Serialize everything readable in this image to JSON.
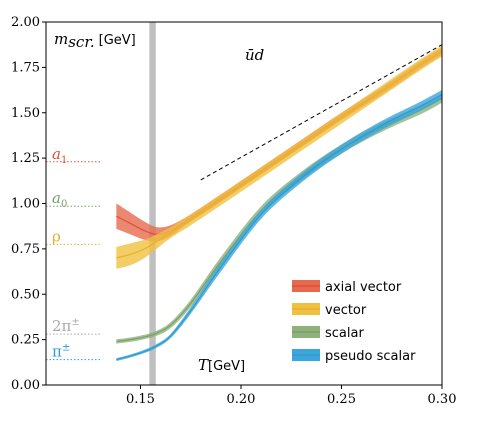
{
  "chart_data": {
    "type": "line",
    "title": "",
    "ylabel": "m_scr. [GeV]",
    "ylabel_unit": "[GeV]",
    "xlabel_unit": "[GeV]",
    "ylabel_symbol": "m",
    "ylabel_sub": "scr.",
    "xlabel_symbol": "T",
    "annotation": "ūd",
    "xlim": [
      0.103,
      0.3
    ],
    "ylim": [
      0.0,
      2.0
    ],
    "xticks": [
      0.15,
      0.2,
      0.25,
      0.3
    ],
    "xtick_labels": [
      "0.15",
      "0.20",
      "0.25",
      "0.30"
    ],
    "yticks": [
      0.0,
      0.25,
      0.5,
      0.75,
      1.0,
      1.25,
      1.5,
      1.75,
      2.0
    ],
    "ytick_labels": [
      "0.00",
      "0.25",
      "0.50",
      "0.75",
      "1.00",
      "1.25",
      "1.50",
      "1.75",
      "2.00"
    ],
    "grid": false,
    "legend_position": "bottom-right",
    "vertical_band": {
      "x": 0.156,
      "half_width": 0.0016,
      "color": "#bfbfbf"
    },
    "reference_line": {
      "x": [
        0.18,
        0.3
      ],
      "y": [
        1.13,
        1.875
      ],
      "style": "dashed",
      "color": "#000000"
    },
    "reference_levels": [
      {
        "label_base": "a",
        "label_sub": "1",
        "label_sup": "",
        "y": 1.23,
        "color": "#e0503a"
      },
      {
        "label_base": "a",
        "label_sub": "0",
        "label_sup": "",
        "y": 0.985,
        "color": "#7aa06a"
      },
      {
        "label_base": "ρ",
        "label_sub": "",
        "label_sup": "",
        "y": 0.775,
        "color": "#e8b02a"
      },
      {
        "label_base": "2π",
        "label_sub": "",
        "label_sup": "±",
        "y": 0.28,
        "color": "#aaaaaa"
      },
      {
        "label_base": "π",
        "label_sub": "",
        "label_sup": "±",
        "y": 0.14,
        "color": "#2e9ad0"
      }
    ],
    "series": [
      {
        "name": "axial vector",
        "color": "#e0503a",
        "band_color": "#e76a4f",
        "x": [
          0.138,
          0.145,
          0.152,
          0.158,
          0.165,
          0.175,
          0.19,
          0.21,
          0.23,
          0.25,
          0.27,
          0.29,
          0.3
        ],
        "y": [
          0.93,
          0.89,
          0.85,
          0.83,
          0.85,
          0.92,
          1.03,
          1.18,
          1.33,
          1.48,
          1.62,
          1.77,
          1.84
        ],
        "err": [
          0.07,
          0.06,
          0.05,
          0.04,
          0.03,
          0.02,
          0.02,
          0.02,
          0.02,
          0.02,
          0.02,
          0.02,
          0.02
        ]
      },
      {
        "name": "vector",
        "color": "#e8b02a",
        "band_color": "#f0c040",
        "x": [
          0.138,
          0.145,
          0.152,
          0.158,
          0.165,
          0.175,
          0.19,
          0.21,
          0.23,
          0.25,
          0.27,
          0.29,
          0.3
        ],
        "y": [
          0.7,
          0.72,
          0.75,
          0.79,
          0.84,
          0.91,
          1.02,
          1.17,
          1.32,
          1.47,
          1.62,
          1.77,
          1.84
        ],
        "err": [
          0.06,
          0.06,
          0.05,
          0.04,
          0.03,
          0.03,
          0.03,
          0.03,
          0.03,
          0.03,
          0.03,
          0.03,
          0.03
        ]
      },
      {
        "name": "scalar",
        "color": "#7aa06a",
        "band_color": "#8fb17a",
        "x": [
          0.138,
          0.145,
          0.152,
          0.158,
          0.165,
          0.175,
          0.19,
          0.21,
          0.23,
          0.25,
          0.27,
          0.29,
          0.3
        ],
        "y": [
          0.24,
          0.25,
          0.265,
          0.285,
          0.33,
          0.45,
          0.68,
          0.96,
          1.15,
          1.3,
          1.42,
          1.52,
          1.58
        ],
        "err": [
          0.012,
          0.012,
          0.012,
          0.014,
          0.016,
          0.02,
          0.025,
          0.025,
          0.025,
          0.025,
          0.025,
          0.025,
          0.025
        ]
      },
      {
        "name": "pseudo scalar",
        "color": "#2e9ad0",
        "band_color": "#3aa6dc",
        "x": [
          0.138,
          0.145,
          0.152,
          0.158,
          0.165,
          0.175,
          0.19,
          0.21,
          0.23,
          0.25,
          0.27,
          0.29,
          0.3
        ],
        "y": [
          0.14,
          0.16,
          0.185,
          0.215,
          0.27,
          0.41,
          0.65,
          0.94,
          1.14,
          1.3,
          1.43,
          1.54,
          1.6
        ],
        "err": [
          0.008,
          0.008,
          0.009,
          0.01,
          0.012,
          0.018,
          0.025,
          0.025,
          0.025,
          0.025,
          0.025,
          0.025,
          0.025
        ]
      }
    ]
  }
}
